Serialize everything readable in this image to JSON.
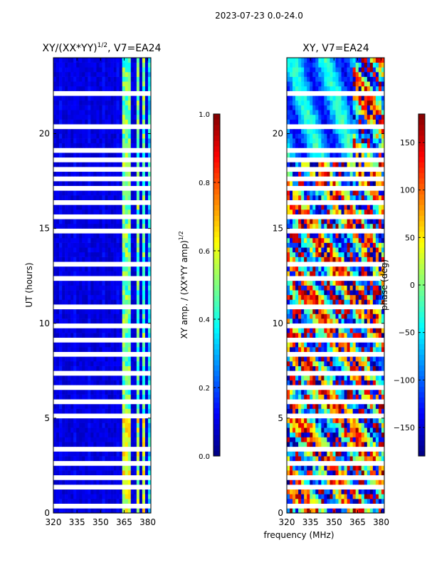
{
  "suptitle": "2023-07-23 0.0-24.0",
  "shared_xlabel": "frequency (MHz)",
  "panels": [
    {
      "title_main": "XY/(XX*YY)",
      "title_sup": "1/2",
      "title_tail": ", V7=EA24"
    },
    {
      "title": "XY, V7=EA24"
    }
  ],
  "colorbars": [
    {
      "label_main": "XY amp. / (XX*YY amp)",
      "label_sup": "1/2"
    },
    {
      "label": "phase (deg)"
    }
  ],
  "chart_data": [
    {
      "type": "heatmap",
      "title": "XY/(XX*YY)^1/2, V7=EA24",
      "xlabel": "",
      "ylabel": "UT (hours)",
      "x_range": [
        320,
        382
      ],
      "y_range": [
        0,
        24
      ],
      "x_ticks": [
        320,
        335,
        350,
        365,
        380
      ],
      "y_ticks": [
        0,
        5,
        10,
        15,
        20
      ],
      "colormap": "jet",
      "color_range": [
        0.0,
        1.0
      ],
      "colorbar_ticks": [
        "0.0",
        "0.2",
        "0.4",
        "0.6",
        "0.8",
        "1.0"
      ],
      "colorbar_label": "XY amp. / (XX*YY amp)^1/2",
      "high_amplitude_freq_bands_mhz": [
        [
          364,
          366.5
        ],
        [
          368,
          370
        ],
        [
          372,
          374
        ],
        [
          376,
          379
        ]
      ],
      "gap_hours": [
        0.4,
        1.4,
        1.8,
        2.7,
        3.3,
        4.5,
        5.1,
        5.9,
        6.6,
        7.3,
        8.4,
        9.1,
        9.8,
        10.8,
        11.5,
        12.4,
        13.2,
        14.0,
        14.8,
        15.6,
        16.4,
        17.1,
        17.6,
        18.1,
        18.7,
        19.2,
        20.4,
        21.5,
        22.2,
        23.0
      ]
    },
    {
      "type": "heatmap",
      "title": "XY, V7=EA24",
      "xlabel": "frequency (MHz)",
      "ylabel": "",
      "x_range": [
        320,
        382
      ],
      "y_range": [
        0,
        24
      ],
      "x_ticks": [
        320,
        335,
        350,
        365,
        380
      ],
      "y_ticks": [
        0,
        5,
        10,
        15,
        20
      ],
      "colormap": "jet",
      "color_range": [
        -180,
        180
      ],
      "colorbar_ticks": [
        "150",
        "100",
        "50",
        "0",
        "−50",
        "−100",
        "−150"
      ],
      "colorbar_label": "phase (deg)",
      "gap_hours": [
        0.4,
        1.4,
        1.8,
        2.7,
        3.3,
        4.5,
        5.1,
        5.9,
        6.6,
        7.3,
        8.4,
        9.1,
        9.8,
        10.8,
        11.5,
        12.4,
        13.2,
        14.0,
        14.8,
        15.6,
        16.4,
        17.1,
        17.6,
        18.1,
        18.7,
        19.2,
        20.4,
        21.5,
        22.2,
        23.0
      ]
    }
  ]
}
